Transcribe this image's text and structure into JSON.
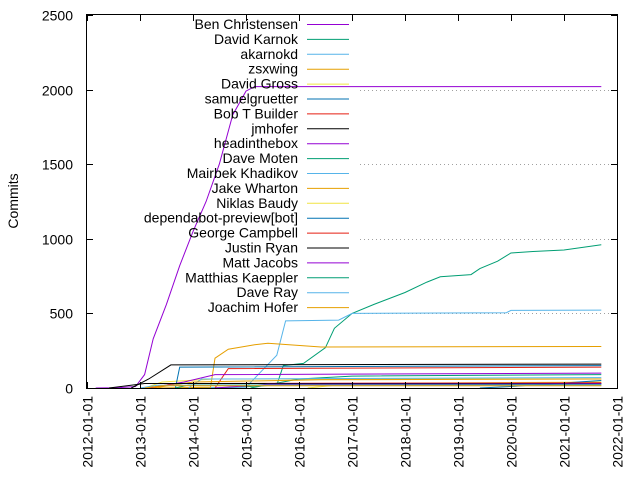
{
  "chart_data": {
    "type": "line",
    "title": "",
    "xlabel": "",
    "ylabel": "Commits",
    "xlim": [
      "2012-01-01",
      "2022-01-01"
    ],
    "ylim": [
      0,
      2500
    ],
    "x_ticks": [
      "2012-01-01",
      "2013-01-01",
      "2014-01-01",
      "2015-01-01",
      "2016-01-01",
      "2017-01-01",
      "2018-01-01",
      "2019-01-01",
      "2020-01-01",
      "2021-01-01",
      "2022-01-01"
    ],
    "y_ticks": [
      "0",
      "500",
      "1000",
      "1500",
      "2000",
      "2500"
    ],
    "grid": "y dotted",
    "legend_position": "top-left",
    "series": [
      {
        "name": "Ben Christensen",
        "color": "#9400d3",
        "points": [
          [
            "2012-03-01",
            0
          ],
          [
            "2012-08-01",
            2
          ],
          [
            "2012-12-01",
            10
          ],
          [
            "2013-02-01",
            90
          ],
          [
            "2013-04-01",
            330
          ],
          [
            "2013-07-01",
            560
          ],
          [
            "2013-10-01",
            820
          ],
          [
            "2014-01-01",
            1050
          ],
          [
            "2014-04-01",
            1250
          ],
          [
            "2014-07-01",
            1500
          ],
          [
            "2014-10-01",
            1830
          ],
          [
            "2015-01-01",
            1990
          ],
          [
            "2015-03-01",
            2020
          ],
          [
            "2021-09-15",
            2020
          ]
        ]
      },
      {
        "name": "David Karnok",
        "color": "#009e73",
        "points": [
          [
            "2013-12-01",
            0
          ],
          [
            "2014-09-01",
            2
          ],
          [
            "2015-08-01",
            20
          ],
          [
            "2015-09-15",
            150
          ],
          [
            "2016-02-01",
            165
          ],
          [
            "2016-07-01",
            270
          ],
          [
            "2016-09-01",
            400
          ],
          [
            "2017-01-01",
            500
          ],
          [
            "2017-06-01",
            560
          ],
          [
            "2018-01-01",
            640
          ],
          [
            "2018-06-01",
            710
          ],
          [
            "2018-09-01",
            745
          ],
          [
            "2019-04-01",
            760
          ],
          [
            "2019-06-01",
            800
          ],
          [
            "2019-10-01",
            850
          ],
          [
            "2020-01-01",
            905
          ],
          [
            "2020-06-01",
            915
          ],
          [
            "2021-01-01",
            925
          ],
          [
            "2021-09-15",
            960
          ]
        ]
      },
      {
        "name": "akarnokd",
        "color": "#56b4e9",
        "points": [
          [
            "2013-06-01",
            0
          ],
          [
            "2015-01-01",
            5
          ],
          [
            "2015-08-01",
            220
          ],
          [
            "2015-10-01",
            450
          ],
          [
            "2016-10-01",
            455
          ],
          [
            "2017-01-01",
            500
          ],
          [
            "2019-12-01",
            505
          ],
          [
            "2020-01-01",
            520
          ],
          [
            "2021-09-15",
            522
          ]
        ]
      },
      {
        "name": "zsxwing",
        "color": "#e69f00",
        "points": [
          [
            "2013-05-01",
            0
          ],
          [
            "2014-05-01",
            5
          ],
          [
            "2014-06-01",
            200
          ],
          [
            "2014-09-01",
            260
          ],
          [
            "2015-03-01",
            290
          ],
          [
            "2015-06-01",
            300
          ],
          [
            "2016-06-01",
            275
          ],
          [
            "2021-09-15",
            278
          ]
        ]
      },
      {
        "name": "David Gross",
        "color": "#f0e442",
        "points": [
          [
            "2013-02-01",
            0
          ],
          [
            "2013-06-01",
            40
          ],
          [
            "2014-06-01",
            60
          ],
          [
            "2021-09-15",
            60
          ]
        ]
      },
      {
        "name": "samuelgruetter",
        "color": "#0072b2",
        "points": [
          [
            "2013-09-01",
            0
          ],
          [
            "2013-10-01",
            140
          ],
          [
            "2021-09-15",
            150
          ]
        ]
      },
      {
        "name": "Bob T Builder",
        "color": "#e51e10",
        "points": [
          [
            "2014-06-01",
            0
          ],
          [
            "2014-09-01",
            130
          ],
          [
            "2021-09-15",
            140
          ]
        ]
      },
      {
        "name": "jmhofer",
        "color": "#000000",
        "points": [
          [
            "2012-11-01",
            0
          ],
          [
            "2013-03-01",
            60
          ],
          [
            "2013-08-01",
            155
          ],
          [
            "2021-09-15",
            160
          ]
        ]
      },
      {
        "name": "headinthebox",
        "color": "#9400d3",
        "points": [
          [
            "2013-03-01",
            0
          ],
          [
            "2013-11-01",
            40
          ],
          [
            "2014-06-01",
            90
          ],
          [
            "2021-09-15",
            100
          ]
        ]
      },
      {
        "name": "Dave Moten",
        "color": "#009e73",
        "points": [
          [
            "2015-02-01",
            0
          ],
          [
            "2016-01-01",
            60
          ],
          [
            "2017-01-01",
            80
          ],
          [
            "2021-09-15",
            90
          ]
        ]
      },
      {
        "name": "Mairbek Khadikov",
        "color": "#56b4e9",
        "points": [
          [
            "2013-12-01",
            0
          ],
          [
            "2014-03-01",
            60
          ],
          [
            "2021-09-15",
            70
          ]
        ]
      },
      {
        "name": "Jake Wharton",
        "color": "#e69f00",
        "points": [
          [
            "2013-04-01",
            0
          ],
          [
            "2014-01-01",
            40
          ],
          [
            "2016-06-01",
            55
          ],
          [
            "2021-09-15",
            60
          ]
        ]
      },
      {
        "name": "Niklas Baudy",
        "color": "#f0e442",
        "points": [
          [
            "2016-03-01",
            0
          ],
          [
            "2017-01-01",
            30
          ],
          [
            "2021-09-15",
            40
          ]
        ]
      },
      {
        "name": "dependabot-preview[bot]",
        "color": "#0072b2",
        "points": [
          [
            "2019-06-01",
            0
          ],
          [
            "2020-01-01",
            10
          ],
          [
            "2021-09-15",
            50
          ]
        ]
      },
      {
        "name": "George Campbell",
        "color": "#e51e10",
        "points": [
          [
            "2013-03-01",
            0
          ],
          [
            "2013-09-01",
            30
          ],
          [
            "2021-09-15",
            35
          ]
        ]
      },
      {
        "name": "Justin Ryan",
        "color": "#000000",
        "points": [
          [
            "2012-06-01",
            0
          ],
          [
            "2013-02-01",
            30
          ],
          [
            "2021-09-15",
            30
          ]
        ]
      },
      {
        "name": "Matt Jacobs",
        "color": "#9400d3",
        "points": [
          [
            "2014-06-01",
            0
          ],
          [
            "2015-06-01",
            25
          ],
          [
            "2021-09-15",
            28
          ]
        ]
      },
      {
        "name": "Matthias Kaeppler",
        "color": "#009e73",
        "points": [
          [
            "2013-09-01",
            0
          ],
          [
            "2013-12-01",
            20
          ],
          [
            "2021-09-15",
            22
          ]
        ]
      },
      {
        "name": "Dave Ray",
        "color": "#56b4e9",
        "points": [
          [
            "2013-01-01",
            0
          ],
          [
            "2013-05-01",
            18
          ],
          [
            "2021-09-15",
            18
          ]
        ]
      },
      {
        "name": "Joachim Hofer",
        "color": "#e69f00",
        "points": [
          [
            "2013-02-01",
            0
          ],
          [
            "2013-06-01",
            15
          ],
          [
            "2021-09-15",
            15
          ]
        ]
      }
    ]
  }
}
